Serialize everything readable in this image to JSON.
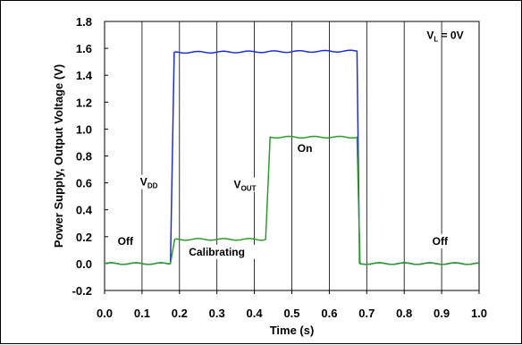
{
  "chart_data": {
    "type": "line",
    "title": "",
    "xlabel": "Time (s)",
    "ylabel": "Power Supply, Output Voltage (V)",
    "xlim": [
      0.0,
      1.0
    ],
    "ylim": [
      -0.2,
      1.8
    ],
    "xticks": [
      "0.0",
      "0.1",
      "0.2",
      "0.3",
      "0.4",
      "0.5",
      "0.6",
      "0.7",
      "0.8",
      "0.9",
      "1.0"
    ],
    "yticks": [
      "-0.2",
      "0.0",
      "0.2",
      "0.4",
      "0.6",
      "0.8",
      "1.0",
      "1.2",
      "1.4",
      "1.6",
      "1.8"
    ],
    "grid": "vertical",
    "series": [
      {
        "name": "VDD",
        "color": "#1f2fcc",
        "points": [
          [
            0.0,
            0.0
          ],
          [
            0.176,
            0.0
          ],
          [
            0.186,
            1.57
          ],
          [
            0.674,
            1.58
          ],
          [
            0.681,
            0.0
          ],
          [
            1.0,
            0.0
          ]
        ]
      },
      {
        "name": "VOUT",
        "color": "#2e9a2e",
        "points": [
          [
            0.0,
            0.0
          ],
          [
            0.176,
            0.0
          ],
          [
            0.187,
            0.18
          ],
          [
            0.43,
            0.18
          ],
          [
            0.442,
            0.94
          ],
          [
            0.674,
            0.94
          ],
          [
            0.682,
            0.0
          ],
          [
            1.0,
            0.0
          ]
        ]
      }
    ],
    "annotations": [
      {
        "id": "vl",
        "text": "V",
        "sub": "L",
        "suffix": " = 0V",
        "x": 0.86,
        "y": 1.67
      },
      {
        "id": "vdd",
        "text": "V",
        "sub": "DD",
        "suffix": "",
        "x": 0.095,
        "y": 0.58
      },
      {
        "id": "vout",
        "text": "V",
        "sub": "OUT",
        "suffix": "",
        "x": 0.345,
        "y": 0.56
      },
      {
        "id": "on",
        "text": "On",
        "sub": "",
        "suffix": "",
        "x": 0.515,
        "y": 0.83
      },
      {
        "id": "off-left",
        "text": "Off",
        "sub": "",
        "suffix": "",
        "x": 0.035,
        "y": 0.14
      },
      {
        "id": "off-right",
        "text": "Off",
        "sub": "",
        "suffix": "",
        "x": 0.875,
        "y": 0.14
      },
      {
        "id": "calibrating",
        "text": "Calibrating",
        "sub": "",
        "suffix": "",
        "x": 0.225,
        "y": 0.06
      }
    ]
  }
}
